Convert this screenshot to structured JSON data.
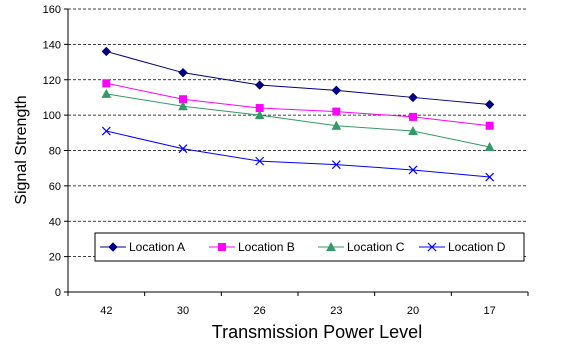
{
  "chart_data": {
    "type": "line",
    "xlabel": "Transmission Power Level",
    "ylabel": "Signal Strength",
    "categories": [
      "42",
      "30",
      "26",
      "23",
      "20",
      "17"
    ],
    "ylim": [
      0,
      160
    ],
    "yticks": [
      0,
      20,
      40,
      60,
      80,
      100,
      120,
      140,
      160
    ],
    "grid": "horizontal dashed",
    "legend_position": "bottom-center (inside plot)",
    "series": [
      {
        "name": "Location A",
        "marker": "diamond",
        "color": "#000080",
        "values": [
          136,
          124,
          117,
          114,
          110,
          106
        ]
      },
      {
        "name": "Location B",
        "marker": "square",
        "color": "#FF00FF",
        "values": [
          118,
          109,
          104,
          102,
          99,
          94
        ]
      },
      {
        "name": "Location C",
        "marker": "triangle",
        "color": "#339966",
        "values": [
          112,
          105,
          100,
          94,
          91,
          82
        ]
      },
      {
        "name": "Location D",
        "marker": "x",
        "color": "#0000FF",
        "values": [
          91,
          81,
          74,
          72,
          69,
          65
        ]
      }
    ]
  }
}
